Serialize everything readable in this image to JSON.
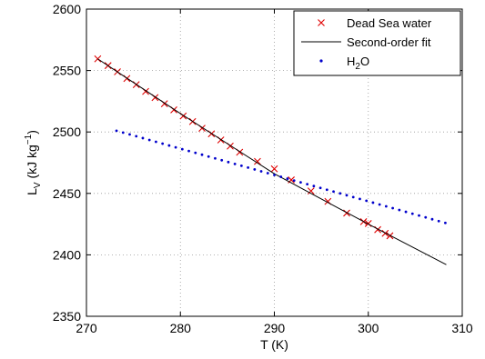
{
  "chart_data": {
    "type": "scatter",
    "title": "",
    "xlabel": "T (K)",
    "ylabel_main": "L",
    "ylabel_sub": "V",
    "ylabel_units": "(kJ kg",
    "ylabel_units_sup": "−1",
    "ylabel_units_close": ")",
    "xlim": [
      270,
      310
    ],
    "ylim": [
      2350,
      2600
    ],
    "xticks": [
      270,
      280,
      290,
      300,
      310
    ],
    "yticks": [
      2350,
      2400,
      2450,
      2500,
      2550,
      2600
    ],
    "grid": true,
    "legend_position": "top-right",
    "series": [
      {
        "name": "Dead Sea water",
        "marker": "x",
        "color": "#e00000",
        "points": [
          [
            271.2,
            2559.5
          ],
          [
            272.3,
            2554.0
          ],
          [
            273.3,
            2549.0
          ],
          [
            274.3,
            2543.5
          ],
          [
            275.3,
            2538.5
          ],
          [
            276.3,
            2533.0
          ],
          [
            277.3,
            2528.0
          ],
          [
            278.3,
            2523.0
          ],
          [
            279.3,
            2518.0
          ],
          [
            280.3,
            2513.0
          ],
          [
            281.3,
            2508.5
          ],
          [
            282.3,
            2503.0
          ],
          [
            283.3,
            2498.5
          ],
          [
            284.3,
            2493.5
          ],
          [
            285.3,
            2488.5
          ],
          [
            286.3,
            2483.5
          ],
          [
            288.2,
            2476.0
          ],
          [
            290.0,
            2470.0
          ],
          [
            291.8,
            2461.0
          ],
          [
            293.9,
            2452.0
          ],
          [
            295.7,
            2443.5
          ],
          [
            297.7,
            2434.0
          ],
          [
            299.5,
            2427.0
          ],
          [
            300.0,
            2425.5
          ],
          [
            301.0,
            2420.5
          ],
          [
            301.8,
            2417.5
          ],
          [
            302.3,
            2415.5
          ]
        ]
      },
      {
        "name": "Second-order fit",
        "marker": "line",
        "color": "#000000",
        "points": [
          [
            271.2,
            2559.5
          ],
          [
            280.0,
            2515.0
          ],
          [
            290.0,
            2466.0
          ],
          [
            300.0,
            2425.0
          ],
          [
            308.3,
            2392.0
          ]
        ]
      },
      {
        "name": "H",
        "name_sub": "2",
        "name_tail": "O",
        "marker": "dot",
        "color": "#0000cc",
        "points": [
          [
            273.2,
            2501.0
          ],
          [
            273.9,
            2499.5
          ],
          [
            274.6,
            2498.0
          ],
          [
            275.3,
            2496.5
          ],
          [
            276.0,
            2495.0
          ],
          [
            276.7,
            2493.5
          ],
          [
            277.4,
            2492.0
          ],
          [
            278.1,
            2490.5
          ],
          [
            278.8,
            2489.0
          ],
          [
            279.5,
            2487.5
          ],
          [
            280.2,
            2486.0
          ],
          [
            280.9,
            2484.5
          ],
          [
            281.6,
            2483.0
          ],
          [
            282.3,
            2481.5
          ],
          [
            283.0,
            2480.0
          ],
          [
            283.7,
            2478.5
          ],
          [
            284.4,
            2477.0
          ],
          [
            285.1,
            2475.5
          ],
          [
            285.8,
            2474.0
          ],
          [
            286.5,
            2472.5
          ],
          [
            287.2,
            2471.0
          ],
          [
            287.9,
            2469.5
          ],
          [
            288.6,
            2468.0
          ],
          [
            289.3,
            2466.5
          ],
          [
            290.0,
            2465.0
          ],
          [
            290.7,
            2463.5
          ],
          [
            291.4,
            2462.0
          ],
          [
            292.1,
            2460.5
          ],
          [
            292.8,
            2459.0
          ],
          [
            293.5,
            2457.5
          ],
          [
            294.2,
            2456.0
          ],
          [
            294.9,
            2454.5
          ],
          [
            295.6,
            2453.0
          ],
          [
            296.3,
            2451.5
          ],
          [
            297.0,
            2450.0
          ],
          [
            297.7,
            2448.5
          ],
          [
            298.4,
            2447.0
          ],
          [
            299.1,
            2445.5
          ],
          [
            299.8,
            2444.0
          ],
          [
            300.5,
            2442.5
          ],
          [
            301.2,
            2441.0
          ],
          [
            301.9,
            2439.5
          ],
          [
            302.6,
            2438.0
          ],
          [
            303.3,
            2436.5
          ],
          [
            304.0,
            2435.0
          ],
          [
            304.7,
            2433.5
          ],
          [
            305.4,
            2432.0
          ],
          [
            306.1,
            2430.5
          ],
          [
            306.8,
            2429.0
          ],
          [
            307.5,
            2427.5
          ],
          [
            308.2,
            2426.0
          ]
        ]
      }
    ]
  }
}
